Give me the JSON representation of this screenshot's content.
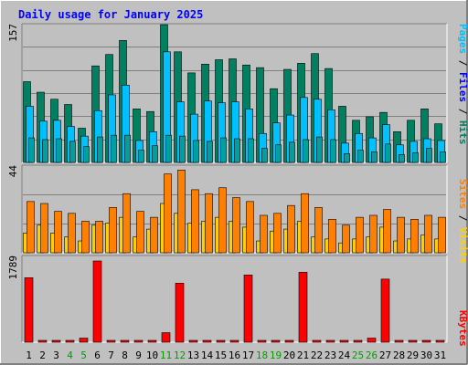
{
  "chart_data": [
    {
      "type": "bar",
      "title": "Daily usage for January 2025",
      "panel": "hits-files-pages",
      "ymax_label": "157",
      "ylim": [
        0,
        157
      ],
      "categories": [
        "1",
        "2",
        "3",
        "4",
        "5",
        "6",
        "7",
        "8",
        "9",
        "10",
        "11",
        "12",
        "13",
        "14",
        "15",
        "16",
        "17",
        "18",
        "19",
        "20",
        "21",
        "22",
        "23",
        "24",
        "25",
        "26",
        "27",
        "28",
        "29",
        "30",
        "31"
      ],
      "legend_text": [
        "Pages",
        "Files",
        "Hits"
      ],
      "series": [
        {
          "name": "Hits",
          "color": "#008060",
          "values": [
            92,
            80,
            72,
            66,
            39,
            110,
            123,
            139,
            61,
            58,
            157,
            126,
            102,
            112,
            117,
            118,
            111,
            108,
            84,
            106,
            113,
            124,
            107,
            64,
            48,
            52,
            57,
            35,
            48,
            61,
            44
          ]
        },
        {
          "name": "Files",
          "color": "#00C0FF",
          "values": [
            64,
            47,
            48,
            41,
            30,
            59,
            77,
            88,
            25,
            35,
            126,
            69,
            55,
            70,
            68,
            69,
            61,
            33,
            45,
            54,
            74,
            72,
            60,
            22,
            33,
            28,
            43,
            20,
            24,
            27,
            25
          ]
        },
        {
          "name": "Pages",
          "color": "#00A0A0",
          "values": [
            28,
            26,
            27,
            24,
            18,
            29,
            31,
            31,
            14,
            19,
            31,
            30,
            25,
            24,
            28,
            27,
            27,
            16,
            20,
            23,
            26,
            29,
            26,
            10,
            14,
            12,
            21,
            9,
            11,
            16,
            12
          ]
        }
      ]
    },
    {
      "type": "bar",
      "panel": "visits-sites",
      "ymax_label": "44",
      "ylim": [
        0,
        44
      ],
      "categories": [
        "1",
        "2",
        "3",
        "4",
        "5",
        "6",
        "7",
        "8",
        "9",
        "10",
        "11",
        "12",
        "13",
        "14",
        "15",
        "16",
        "17",
        "18",
        "19",
        "20",
        "21",
        "22",
        "23",
        "24",
        "25",
        "26",
        "27",
        "28",
        "29",
        "30",
        "31"
      ],
      "legend_text": [
        "Sites",
        "Visits"
      ],
      "series": [
        {
          "name": "Visits",
          "color": "#FF8000",
          "values": [
            26,
            25,
            21,
            20,
            16,
            16,
            23,
            30,
            21,
            18,
            40,
            42,
            32,
            30,
            33,
            28,
            26,
            19,
            20,
            24,
            30,
            23,
            17,
            14,
            18,
            19,
            22,
            18,
            17,
            19,
            18
          ]
        },
        {
          "name": "Sites",
          "color": "#FFD000",
          "values": [
            10,
            14,
            10,
            8,
            6,
            14,
            15,
            18,
            8,
            12,
            25,
            20,
            15,
            16,
            18,
            16,
            13,
            6,
            11,
            12,
            16,
            8,
            7,
            5,
            7,
            8,
            13,
            6,
            7,
            9,
            7
          ]
        }
      ]
    },
    {
      "type": "bar",
      "panel": "kbytes",
      "ymax_label": "1789",
      "ylim": [
        0,
        1789
      ],
      "categories": [
        "1",
        "2",
        "3",
        "4",
        "5",
        "6",
        "7",
        "8",
        "9",
        "10",
        "11",
        "12",
        "13",
        "14",
        "15",
        "16",
        "17",
        "18",
        "19",
        "20",
        "21",
        "22",
        "23",
        "24",
        "25",
        "26",
        "27",
        "28",
        "29",
        "30",
        "31"
      ],
      "legend_text": [
        "KBytes"
      ],
      "series": [
        {
          "name": "KBytes",
          "color": "#FF0000",
          "values": [
            1420,
            10,
            10,
            10,
            90,
            1789,
            30,
            30,
            10,
            10,
            210,
            1300,
            10,
            30,
            10,
            10,
            1480,
            10,
            10,
            40,
            1540,
            10,
            10,
            10,
            10,
            90,
            1390,
            10,
            10,
            10,
            10
          ]
        }
      ]
    }
  ],
  "colors": {
    "background": "#C0C0C0",
    "title": "#0000FF",
    "weekend_label": "#00A000",
    "weekday_label": "#000000",
    "grid": "#808080"
  },
  "weekend_days": [
    "4",
    "5",
    "11",
    "12",
    "18",
    "19",
    "25",
    "26"
  ]
}
